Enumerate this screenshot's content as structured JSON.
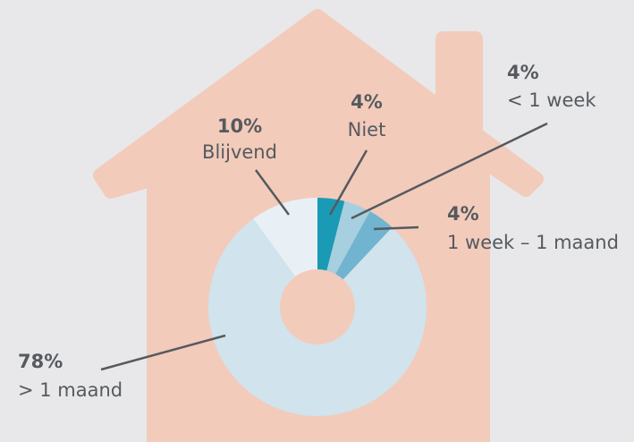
{
  "chart_data": {
    "type": "donut",
    "categories": [
      "Niet",
      "< 1 week",
      "1 week – 1 maand",
      "> 1 maand",
      "Blijvend"
    ],
    "values": [
      4,
      4,
      4,
      78,
      10
    ],
    "value_labels": [
      "4%",
      "4%",
      "4%",
      "78%",
      "10%"
    ],
    "colors": [
      "#1a9ab5",
      "#a6cfdf",
      "#70b4d0",
      "#d1e3ec",
      "#e8f0f6"
    ]
  }
}
